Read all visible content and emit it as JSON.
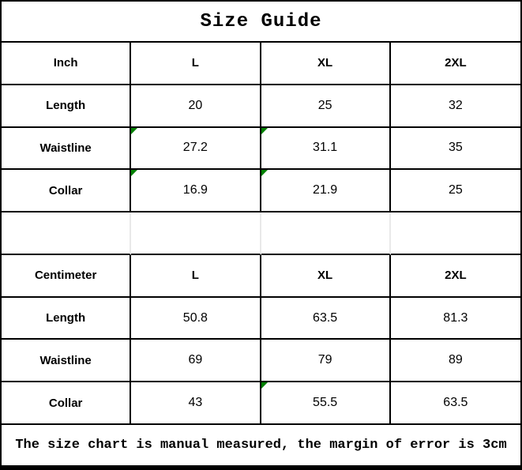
{
  "title": "Size Guide",
  "inch": {
    "header": [
      "Inch",
      "L",
      "XL",
      "2XL"
    ],
    "rows": [
      {
        "label": "Length",
        "values": [
          "20",
          "25",
          "32"
        ],
        "markers": [
          false,
          false,
          false
        ]
      },
      {
        "label": "Waistline",
        "values": [
          "27.2",
          "31.1",
          "35"
        ],
        "markers": [
          true,
          true,
          false
        ]
      },
      {
        "label": "Collar",
        "values": [
          "16.9",
          "21.9",
          "25"
        ],
        "markers": [
          true,
          true,
          false
        ]
      }
    ]
  },
  "centimeter": {
    "header": [
      "Centimeter",
      "L",
      "XL",
      "2XL"
    ],
    "rows": [
      {
        "label": "Length",
        "values": [
          "50.8",
          "63.5",
          "81.3"
        ],
        "markers": [
          false,
          false,
          false
        ]
      },
      {
        "label": "Waistline",
        "values": [
          "69",
          "79",
          "89"
        ],
        "markers": [
          false,
          false,
          false
        ]
      },
      {
        "label": "Collar",
        "values": [
          "43",
          "55.5",
          "63.5"
        ],
        "markers": [
          false,
          true,
          false
        ]
      }
    ]
  },
  "footer_note": "The size chart is manual measured, the margin of error is 3cm",
  "icons": {
    "comment_marker": "green-triangle-top-left"
  },
  "colors": {
    "marker_green": "#008000",
    "border": "#000000",
    "empty_row_divider": "#e9e9e9",
    "background": "#ffffff"
  }
}
